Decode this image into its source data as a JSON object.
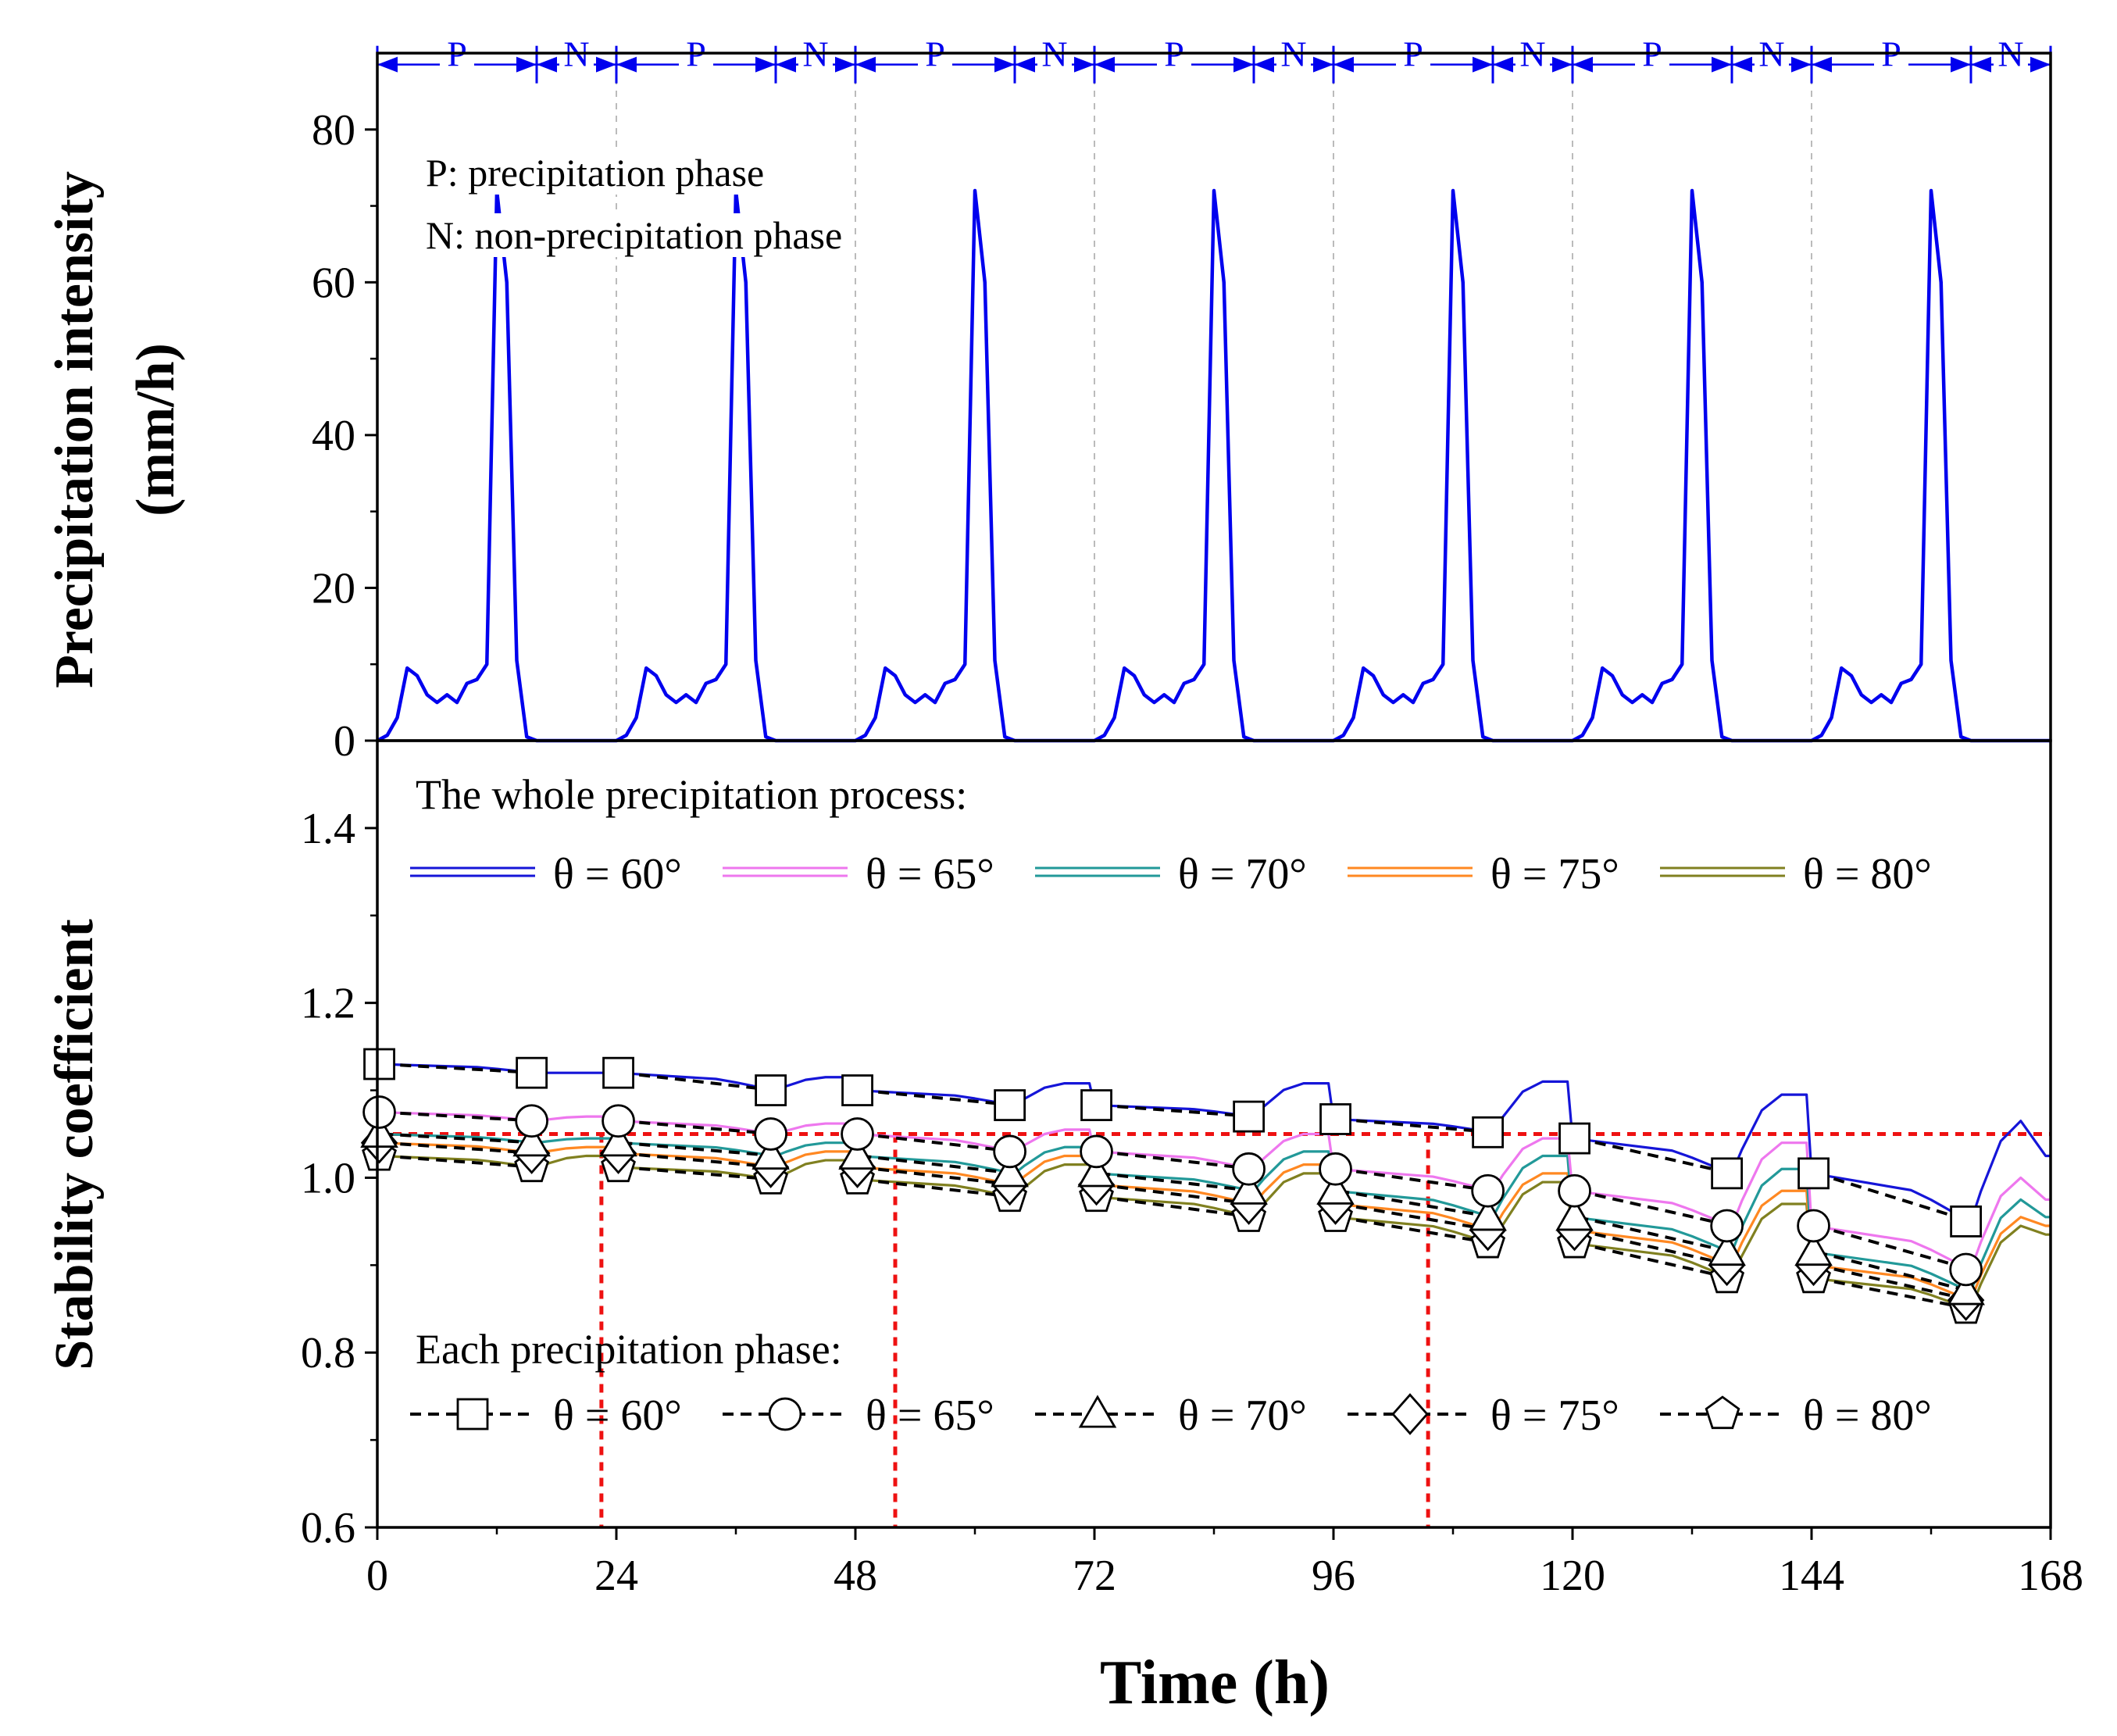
{
  "chart_data": [
    {
      "type": "line",
      "panel": "top",
      "ylabel_line1": "Precipitation intensity",
      "ylabel_line2": "(mm/h)",
      "ylim": [
        0,
        90
      ],
      "yticks": [
        0,
        20,
        40,
        60,
        80
      ],
      "xlim": [
        0,
        168
      ],
      "annotation_p": "P: precipitation phase",
      "annotation_n": "N: non-precipitation phase",
      "phase_labels": [
        "P",
        "N"
      ],
      "phase_period": 24,
      "phase_p_duration": 16,
      "cycle_count": 7,
      "series_color": "#0000ee",
      "cycle_profile": {
        "t": [
          0,
          1,
          2,
          3,
          4,
          5,
          6,
          7,
          8,
          9,
          10,
          11,
          12,
          13,
          14,
          15,
          16,
          17,
          18,
          24
        ],
        "values": [
          0,
          0.7,
          3,
          9.5,
          8.5,
          6,
          5,
          6,
          5,
          7.5,
          8,
          10,
          72,
          60,
          10.5,
          0.5,
          0,
          0,
          0,
          0
        ]
      }
    },
    {
      "type": "line",
      "panel": "bottom",
      "xlabel": "Time (h)",
      "ylabel": "Stability coefficient",
      "xlim": [
        0,
        168
      ],
      "xticks": [
        0,
        24,
        48,
        72,
        96,
        120,
        144,
        168
      ],
      "ylim": [
        0.6,
        1.5
      ],
      "yticks": [
        0.6,
        0.8,
        1.0,
        1.2,
        1.4
      ],
      "ytick_labels": [
        "0.6",
        "0.8",
        "1.0",
        "1.2",
        "1.4"
      ],
      "legend_whole_title": "The whole precipitation process:",
      "legend_phase_title": "Each precipitation phase:",
      "threshold": 1.05,
      "threshold_color": "#ee1111",
      "crossing_times": [
        22.5,
        52,
        105.5
      ],
      "series": [
        {
          "name": "θ = 60°",
          "color": "#1515d8",
          "marker": "square",
          "phase_start": [
            1.13,
            1.12,
            1.1,
            1.083,
            1.067,
            1.045,
            1.005
          ],
          "phase_end": [
            1.12,
            1.1,
            1.083,
            1.07,
            1.052,
            1.005,
            0.95
          ],
          "nonp_peak": [
            1.12,
            1.115,
            1.108,
            1.108,
            1.11,
            1.095,
            1.065
          ],
          "end_value": 1.025
        },
        {
          "name": "θ = 65°",
          "color": "#ee77ee",
          "marker": "circle",
          "phase_start": [
            1.075,
            1.065,
            1.05,
            1.03,
            1.01,
            0.985,
            0.945
          ],
          "phase_end": [
            1.065,
            1.05,
            1.03,
            1.01,
            0.985,
            0.945,
            0.895
          ],
          "nonp_peak": [
            1.07,
            1.062,
            1.055,
            1.05,
            1.045,
            1.04,
            1.0
          ],
          "end_value": 0.975
        },
        {
          "name": "θ = 70°",
          "color": "#229999",
          "marker": "triangle",
          "phase_start": [
            1.05,
            1.04,
            1.025,
            1.005,
            0.985,
            0.955,
            0.915
          ],
          "phase_end": [
            1.04,
            1.025,
            1.005,
            0.985,
            0.955,
            0.915,
            0.87
          ],
          "nonp_peak": [
            1.045,
            1.04,
            1.035,
            1.03,
            1.025,
            1.01,
            0.975
          ],
          "end_value": 0.955
        },
        {
          "name": "θ = 75°",
          "color": "#ff8822",
          "marker": "diamond",
          "phase_start": [
            1.04,
            1.028,
            1.012,
            0.992,
            0.97,
            0.94,
            0.9
          ],
          "phase_end": [
            1.028,
            1.012,
            0.992,
            0.97,
            0.94,
            0.9,
            0.86
          ],
          "nonp_peak": [
            1.035,
            1.03,
            1.025,
            1.015,
            1.005,
            0.985,
            0.955
          ],
          "end_value": 0.945
        },
        {
          "name": "θ = 80°",
          "color": "#808020",
          "marker": "pentagon",
          "phase_start": [
            1.025,
            1.012,
            0.998,
            0.978,
            0.955,
            0.925,
            0.885
          ],
          "phase_end": [
            1.012,
            0.998,
            0.978,
            0.955,
            0.925,
            0.885,
            0.85
          ],
          "nonp_peak": [
            1.025,
            1.02,
            1.015,
            1.005,
            0.995,
            0.97,
            0.945
          ],
          "end_value": 0.935
        }
      ]
    }
  ]
}
